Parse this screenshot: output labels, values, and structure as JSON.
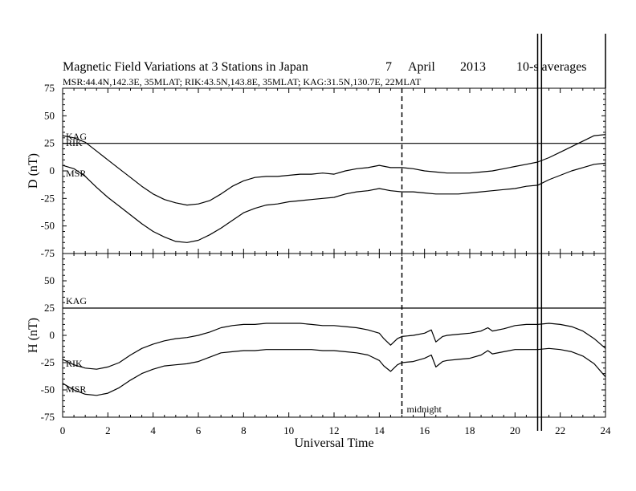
{
  "chart_data": {
    "type": "line",
    "title": "Magnetic Field Variations at 3 Stations in Japan",
    "date": {
      "day": "7",
      "month": "April",
      "year": "2013"
    },
    "averaging": "10-s averages",
    "subtitle": "MSR:44.4N,142.3E, 35MLAT;  RIK:43.5N,143.8E, 35MLAT;  KAG:31.5N,130.7E, 22MLAT",
    "xlabel": "Universal Time",
    "xlim": [
      0,
      24
    ],
    "xticks": [
      "0",
      "2",
      "4",
      "6",
      "8",
      "10",
      "12",
      "14",
      "16",
      "18",
      "20",
      "22",
      "24"
    ],
    "midnight": {
      "x": 15,
      "label": "midnight"
    },
    "data_gap": {
      "x_start": 21.0,
      "x_end": 21.1
    },
    "panels": [
      {
        "ylabel": "D (nT)",
        "ylim": [
          -75,
          75
        ],
        "yticks": [
          "75",
          "50",
          "25",
          "0",
          "-25",
          "-50",
          "-75"
        ],
        "series": [
          {
            "name": "KAG",
            "x": [
              0,
              24
            ],
            "y": [
              25,
              25
            ]
          },
          {
            "name": "RIK",
            "x": [
              0,
              0.5,
              1,
              1.5,
              2,
              2.5,
              3,
              3.5,
              4,
              4.5,
              5,
              5.5,
              6,
              6.5,
              7,
              7.5,
              8,
              8.5,
              9,
              9.5,
              10,
              10.5,
              11,
              11.5,
              12,
              12.5,
              13,
              13.5,
              14,
              14.5,
              15,
              15.5,
              16,
              16.5,
              17,
              17.5,
              18,
              18.5,
              19,
              19.5,
              20,
              20.5,
              21,
              21.5,
              22,
              22.5,
              23,
              23.5,
              24
            ],
            "y": [
              32,
              30,
              26,
              18,
              10,
              2,
              -6,
              -14,
              -21,
              -26,
              -29,
              -31,
              -30,
              -27,
              -21,
              -14,
              -9,
              -6,
              -5,
              -5,
              -4,
              -3,
              -3,
              -2,
              -3,
              0,
              2,
              3,
              5,
              3,
              3,
              2,
              0,
              -1,
              -2,
              -2,
              -2,
              -1,
              0,
              2,
              4,
              6,
              8,
              12,
              17,
              22,
              27,
              32,
              33
            ]
          },
          {
            "name": "MSR",
            "x": [
              0,
              0.5,
              1,
              1.5,
              2,
              2.5,
              3,
              3.5,
              4,
              4.5,
              5,
              5.5,
              6,
              6.5,
              7,
              7.5,
              8,
              8.5,
              9,
              9.5,
              10,
              10.5,
              11,
              11.5,
              12,
              12.5,
              13,
              13.5,
              14,
              14.5,
              15,
              15.5,
              16,
              16.5,
              17,
              17.5,
              18,
              18.5,
              19,
              19.5,
              20,
              20.5,
              21,
              21.5,
              22,
              22.5,
              23,
              23.5,
              24
            ],
            "y": [
              5,
              2,
              -5,
              -15,
              -24,
              -32,
              -40,
              -48,
              -55,
              -60,
              -64,
              -65,
              -63,
              -58,
              -52,
              -45,
              -38,
              -34,
              -31,
              -30,
              -28,
              -27,
              -26,
              -25,
              -24,
              -21,
              -19,
              -18,
              -16,
              -18,
              -19,
              -19,
              -20,
              -21,
              -21,
              -21,
              -20,
              -19,
              -18,
              -17,
              -16,
              -14,
              -13,
              -8,
              -4,
              0,
              3,
              6,
              7
            ]
          }
        ],
        "labels": [
          "KAG",
          "RIK",
          "MSR"
        ]
      },
      {
        "ylabel": "H (nT)",
        "ylim": [
          -75,
          75
        ],
        "yticks": [
          "75",
          "50",
          "25",
          "0",
          "-25",
          "-50",
          "-75"
        ],
        "series": [
          {
            "name": "KAG",
            "x": [
              0,
              24
            ],
            "y": [
              25,
              25
            ]
          },
          {
            "name": "RIK",
            "x": [
              0,
              0.5,
              1,
              1.5,
              2,
              2.5,
              3,
              3.5,
              4,
              4.5,
              5,
              5.5,
              6,
              6.5,
              7,
              7.5,
              8,
              8.5,
              9,
              9.5,
              10,
              10.5,
              11,
              11.5,
              12,
              12.5,
              13,
              13.5,
              14,
              14.2,
              14.5,
              14.8,
              15,
              15.5,
              16,
              16.3,
              16.5,
              16.8,
              17,
              17.5,
              18,
              18.5,
              18.8,
              19,
              19.5,
              20,
              20.5,
              21,
              21.5,
              22,
              22.5,
              23,
              23.5,
              24
            ],
            "y": [
              -22,
              -27,
              -30,
              -31,
              -29,
              -25,
              -18,
              -12,
              -8,
              -5,
              -3,
              -2,
              0,
              3,
              7,
              9,
              10,
              10,
              11,
              11,
              11,
              11,
              10,
              9,
              9,
              8,
              7,
              5,
              2,
              -3,
              -9,
              -3,
              -1,
              0,
              2,
              5,
              -6,
              -1,
              0,
              1,
              2,
              4,
              7,
              4,
              6,
              9,
              10,
              10,
              11,
              10,
              8,
              4,
              -3,
              -12
            ]
          },
          {
            "name": "MSR",
            "x": [
              0,
              0.5,
              1,
              1.5,
              2,
              2.5,
              3,
              3.5,
              4,
              4.5,
              5,
              5.5,
              6,
              6.5,
              7,
              7.5,
              8,
              8.5,
              9,
              9.5,
              10,
              10.5,
              11,
              11.5,
              12,
              12.5,
              13,
              13.5,
              14,
              14.2,
              14.5,
              14.8,
              15,
              15.5,
              16,
              16.3,
              16.5,
              16.8,
              17,
              17.5,
              18,
              18.5,
              18.8,
              19,
              19.5,
              20,
              20.5,
              21,
              21.5,
              22,
              22.5,
              23,
              23.5,
              24
            ],
            "y": [
              -44,
              -50,
              -54,
              -55,
              -53,
              -48,
              -41,
              -35,
              -31,
              -28,
              -27,
              -26,
              -24,
              -20,
              -16,
              -15,
              -14,
              -14,
              -13,
              -13,
              -13,
              -13,
              -13,
              -14,
              -14,
              -15,
              -16,
              -18,
              -23,
              -28,
              -33,
              -27,
              -25,
              -24,
              -21,
              -18,
              -29,
              -24,
              -23,
              -22,
              -21,
              -18,
              -14,
              -17,
              -15,
              -13,
              -13,
              -13,
              -12,
              -13,
              -15,
              -19,
              -26,
              -38
            ]
          }
        ],
        "labels": [
          "KAG",
          "RIK",
          "MSR"
        ]
      }
    ]
  }
}
